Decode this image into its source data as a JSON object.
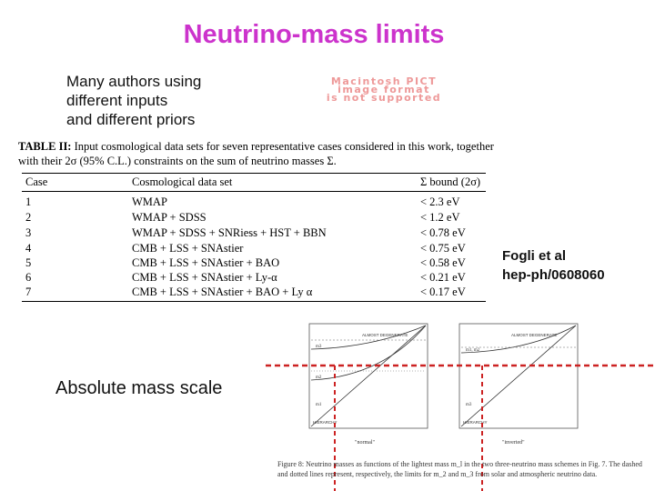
{
  "title": "Neutrino-mass limits",
  "intro_lines": [
    "Many authors using",
    "different inputs",
    "and different priors"
  ],
  "pict_placeholder": [
    "Macintosh PICT",
    "image format",
    "is not supported"
  ],
  "table": {
    "caption_label": "TABLE II:",
    "caption_text": "Input cosmological data sets for seven representative cases considered in this work, together with their 2σ (95% C.L.) constraints on the sum of neutrino masses Σ.",
    "headers": [
      "Case",
      "Cosmological data set",
      "Σ bound (2σ)"
    ],
    "rows": [
      {
        "case": "1",
        "data": "WMAP",
        "bound": "< 2.3 eV"
      },
      {
        "case": "2",
        "data": "WMAP + SDSS",
        "bound": "< 1.2 eV"
      },
      {
        "case": "3",
        "data": "WMAP + SDSS + SNRiess + HST + BBN",
        "bound": "< 0.78 eV"
      },
      {
        "case": "4",
        "data": "CMB + LSS + SNAstier",
        "bound": "< 0.75 eV"
      },
      {
        "case": "5",
        "data": "CMB + LSS + SNAstier + BAO",
        "bound": "< 0.58 eV"
      },
      {
        "case": "6",
        "data": "CMB + LSS + SNAstier + Ly-α",
        "bound": "< 0.21 eV"
      },
      {
        "case": "7",
        "data": "CMB + LSS + SNAstier + BAO + Ly α",
        "bound": "< 0.17 eV"
      }
    ]
  },
  "reference": [
    "Fogli et al",
    "hep-ph/0608060"
  ],
  "absolute_label": "Absolute mass scale",
  "figure": {
    "left_panel": {
      "label_top": "ALMOST DEGENERATE",
      "label_bottom": "HIERARCHY",
      "xlabel": "\"normal\"",
      "curves": [
        "m3",
        "m2",
        "m1"
      ]
    },
    "right_panel": {
      "label_top": "ALMOST DEGENERATE",
      "label_bottom": "HIERARCHY",
      "xlabel": "\"inverted\"",
      "curves": [
        "m1, m2",
        "m3"
      ]
    },
    "caption": "Figure 8: Neutrino masses as functions of the lightest mass m_l in the two three-neutrino mass schemes in Fig. 7. The dashed and dotted lines represent, respectively, the limits for m_2 and m_3 from solar and atmospheric neutrino data.",
    "line_color": "#cc2222"
  }
}
